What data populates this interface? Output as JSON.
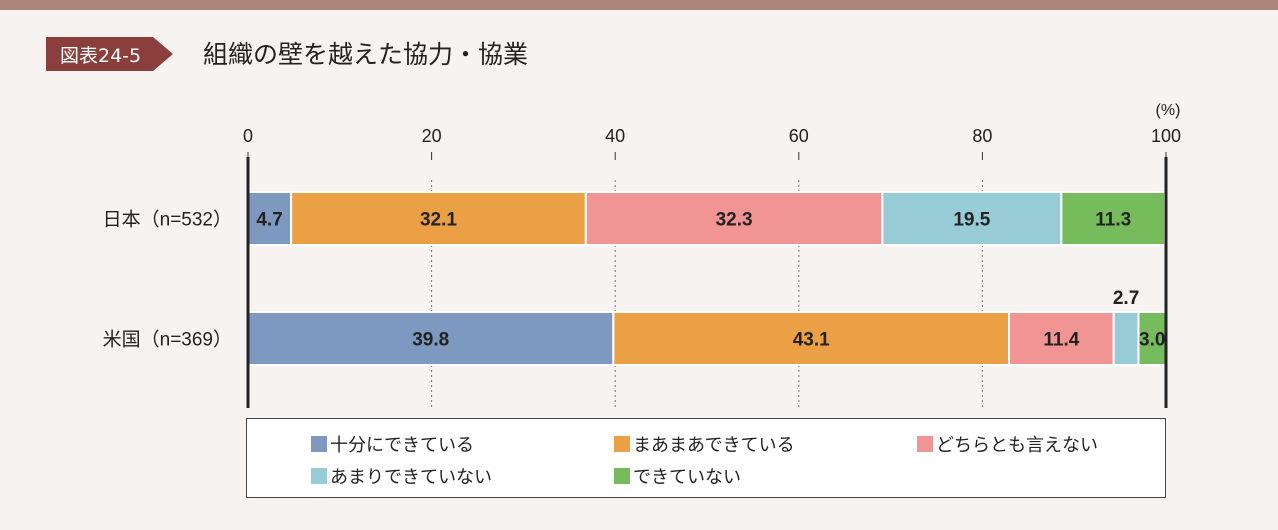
{
  "header": {
    "figure_label": "図表24-5",
    "title": "組織の壁を越えた協力・協業"
  },
  "chart_data": {
    "type": "bar",
    "orientation": "horizontal",
    "stacked": true,
    "unit": "(%)",
    "xlim": [
      0,
      100
    ],
    "xticks": [
      0,
      20,
      40,
      60,
      80,
      100
    ],
    "categories": [
      "日本（n=532）",
      "米国（n=369）"
    ],
    "series": [
      {
        "name": "十分にできている",
        "color": "#7d99bf",
        "values": [
          4.7,
          39.8
        ]
      },
      {
        "name": "まあまあできている",
        "color": "#eba045",
        "values": [
          32.1,
          43.1
        ]
      },
      {
        "name": "どちらとも言えない",
        "color": "#f09593",
        "values": [
          32.3,
          11.4
        ]
      },
      {
        "name": "あまりできていない",
        "color": "#97ccd6",
        "values": [
          19.5,
          2.7
        ]
      },
      {
        "name": "できていない",
        "color": "#77bc5c",
        "values": [
          11.3,
          3.0
        ]
      }
    ],
    "legend_position": "bottom"
  }
}
